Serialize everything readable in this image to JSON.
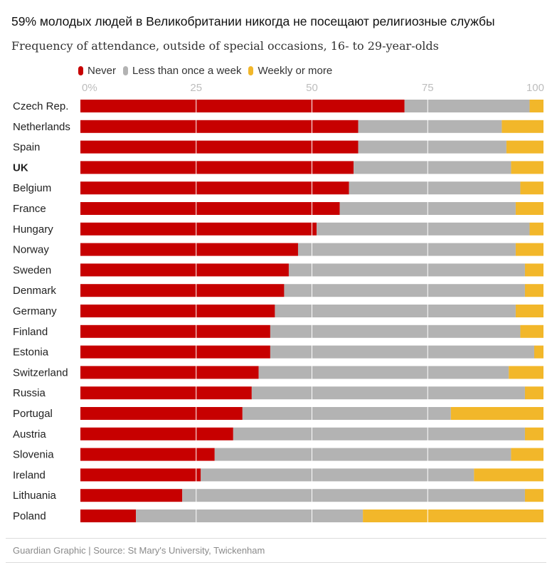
{
  "title": "59% молодых людей в Великобритании никогда не посещают религиозные службы",
  "subtitle": "Frequency of attendance, outside of special occasions, 16- to 29-year-olds",
  "footer": "Guardian Graphic | Source: St Mary's University, Twickenham",
  "colors": {
    "never": "#c70000",
    "less": "#b3b3b3",
    "weekly": "#f2b72a",
    "grid": "#ffffff",
    "tick": "#bdbdbd"
  },
  "chart_data": {
    "type": "bar",
    "orientation": "horizontal",
    "stacked": true,
    "xlim": [
      0,
      100
    ],
    "ticks": [
      "0%",
      "25",
      "50",
      "75",
      "100"
    ],
    "tick_values": [
      0,
      25,
      50,
      75,
      100
    ],
    "legend": [
      "Never",
      "Less than once a week",
      "Weekly or more"
    ],
    "legend_position": "top-left",
    "categories": [
      "Czech Rep.",
      "Netherlands",
      "Spain",
      "UK",
      "Belgium",
      "France",
      "Hungary",
      "Norway",
      "Sweden",
      "Denmark",
      "Germany",
      "Finland",
      "Estonia",
      "Switzerland",
      "Russia",
      "Portugal",
      "Austria",
      "Slovenia",
      "Ireland",
      "Lithuania",
      "Poland"
    ],
    "bold_category": "UK",
    "series": [
      {
        "name": "Never",
        "values": [
          70,
          60,
          60,
          59,
          58,
          56,
          51,
          47,
          45,
          44,
          42,
          41,
          41,
          38.5,
          37,
          35,
          33,
          29,
          26,
          22,
          12
        ]
      },
      {
        "name": "Less than once a week",
        "values": [
          27,
          31,
          32,
          34,
          37,
          38,
          46,
          47,
          51,
          52,
          52,
          54,
          57,
          54,
          59,
          45,
          63,
          64,
          59,
          74,
          49
        ]
      },
      {
        "name": "Weekly or more",
        "values": [
          3,
          9,
          8,
          7,
          5,
          6,
          3,
          6,
          4,
          4,
          6,
          5,
          2,
          7.5,
          4,
          20,
          4,
          7,
          15,
          4,
          39
        ]
      }
    ]
  }
}
